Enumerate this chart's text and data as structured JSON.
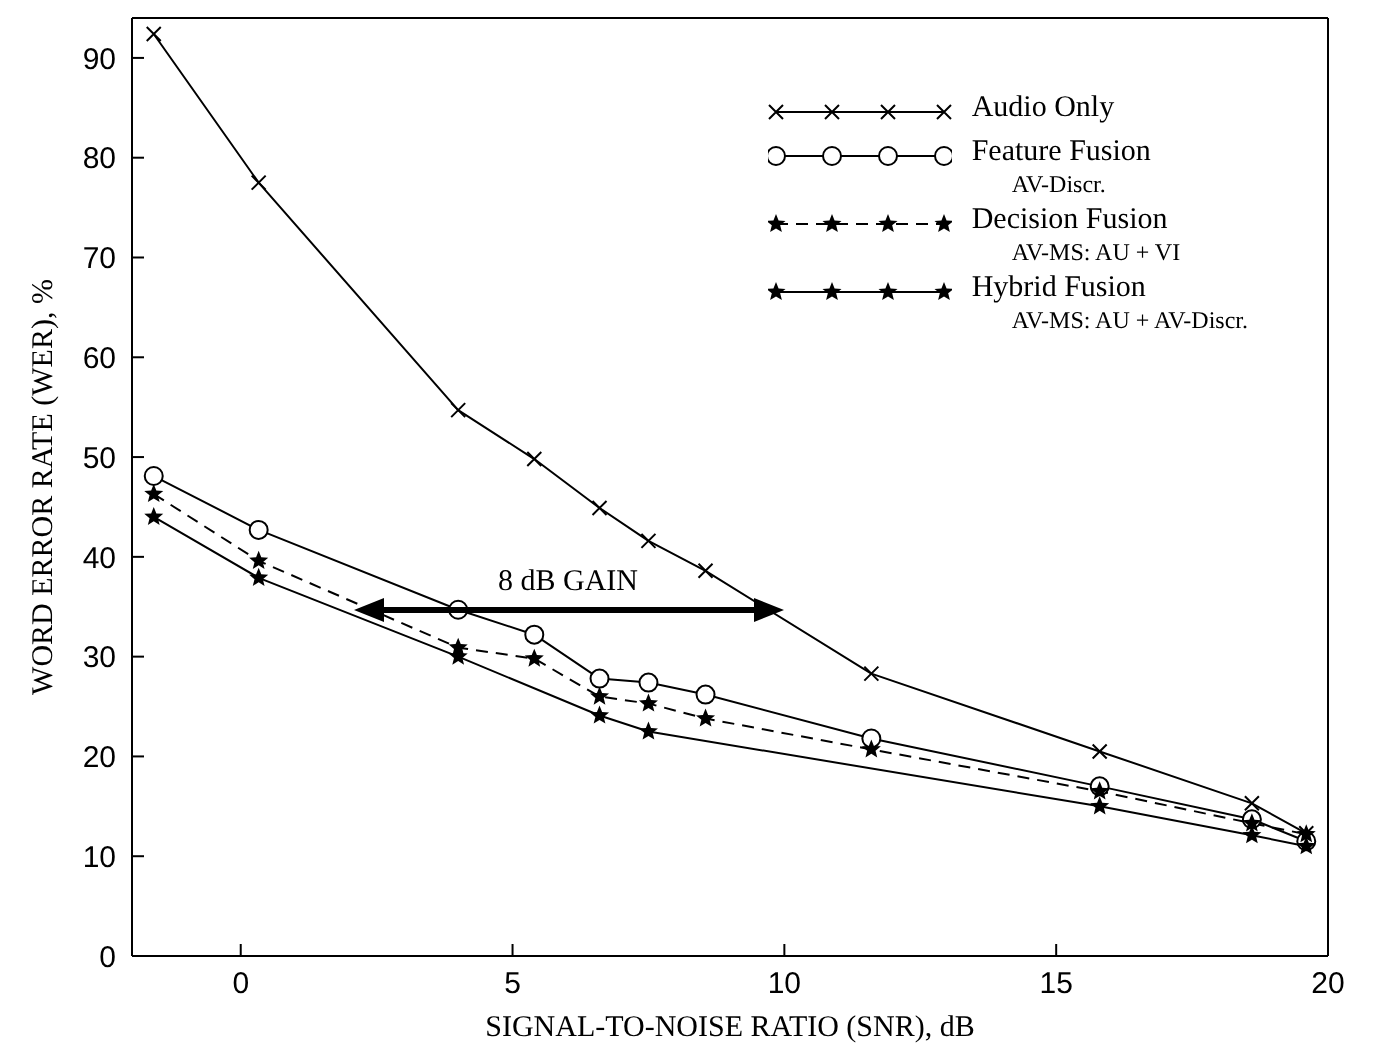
{
  "chart_data": {
    "type": "line",
    "xlabel": "SIGNAL-TO-NOISE RATIO (SNR), dB",
    "ylabel": "WORD ERROR RATE (WER), %",
    "x": [
      -1.6,
      0.33,
      4.0,
      5.4,
      6.6,
      7.5,
      8.55,
      11.6,
      15.8,
      18.6,
      19.6
    ],
    "series": [
      {
        "name": "Audio Only",
        "color": "#000000",
        "marker": "cross",
        "line_style": "solid",
        "values": [
          92.4,
          77.5,
          54.7,
          49.8,
          44.9,
          41.6,
          38.6,
          28.3,
          20.5,
          15.3,
          12.3
        ]
      },
      {
        "name": "Feature Fusion",
        "color": "#000000",
        "marker": "circle",
        "line_style": "solid",
        "values": [
          48.1,
          42.7,
          34.7,
          32.2,
          27.8,
          27.4,
          26.2,
          21.8,
          17.0,
          13.7,
          11.5
        ]
      },
      {
        "name": "Decision Fusion",
        "color": "#000000",
        "marker": "star",
        "line_style": "dashed",
        "values": [
          46.3,
          39.6,
          30.9,
          29.8,
          26.0,
          25.3,
          23.8,
          20.7,
          16.5,
          13.3,
          12.2
        ]
      },
      {
        "name": "Hybrid Fusion",
        "color": "#000000",
        "marker": "star",
        "line_style": "solid",
        "x": [
          -1.6,
          0.33,
          4.0,
          6.6,
          7.5,
          15.8,
          18.6,
          19.6
        ],
        "values": [
          44.0,
          37.9,
          30.0,
          24.1,
          22.5,
          15.0,
          12.1,
          11.0
        ]
      }
    ],
    "annotations": [
      "AV-Discr.",
      "AV-MS: AU + VI",
      "AV-MS: AU + AV-Discr.",
      "8 dB GAIN"
    ],
    "xlim": [
      -2,
      20
    ],
    "xticks": [
      0,
      5,
      10,
      15,
      20
    ],
    "ylim": [
      0,
      94
    ],
    "yticks": [
      0,
      10,
      20,
      30,
      40,
      50,
      60,
      70,
      80,
      90
    ],
    "grid": false,
    "legend": "top right"
  }
}
